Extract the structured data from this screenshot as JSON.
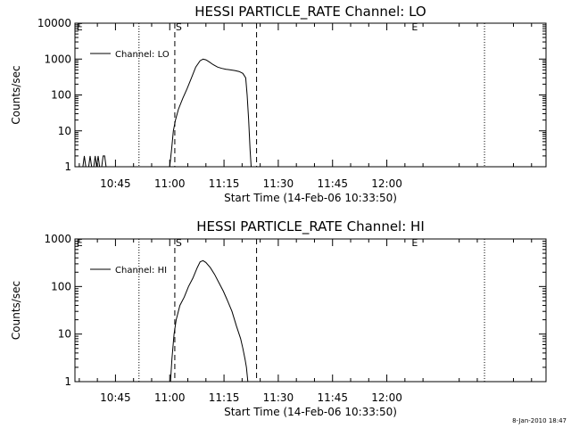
{
  "chart_data": [
    {
      "type": "line",
      "title": "HESSI PARTICLE_RATE Channel: LO",
      "xlabel": "Start Time (14-Feb-06 10:33:50)",
      "ylabel": "Counts/sec",
      "yscale": "log",
      "ylim": [
        1,
        10000
      ],
      "yticks": [
        1,
        10,
        100,
        1000,
        10000
      ],
      "yticklabels": [
        "1",
        "10",
        "100",
        "1000",
        "10000"
      ],
      "xlim_minutes": [
        633.8,
        764
      ],
      "xticks_minutes": [
        645,
        660,
        675,
        690,
        705,
        720
      ],
      "xticklabels": [
        "10:45",
        "11:00",
        "11:15",
        "11:30",
        "11:45",
        "12:00"
      ],
      "legend": "Channel: LO",
      "legend_position": "top-left",
      "dotted_lines_minutes": [
        651.5,
        747
      ],
      "dashed_lines_minutes": [
        661.4,
        684
      ],
      "markers": [
        {
          "label": "S",
          "x_minutes": 661.4
        },
        {
          "label": "E",
          "x_minutes": 726.6
        },
        {
          "label": "E",
          "x_minutes": 634
        }
      ],
      "series": [
        {
          "name": "Channel: LO",
          "points": [
            [
              636,
              1
            ],
            [
              636.4,
              2
            ],
            [
              636.8,
              1
            ],
            [
              637.6,
              1
            ],
            [
              638,
              2
            ],
            [
              638.4,
              1
            ],
            [
              639,
              1
            ],
            [
              639.4,
              2
            ],
            [
              639.8,
              1
            ],
            [
              640.2,
              2
            ],
            [
              640.6,
              1
            ],
            [
              641.2,
              1
            ],
            [
              641.6,
              2
            ],
            [
              642,
              2
            ],
            [
              642.4,
              1
            ],
            [
              660,
              1
            ],
            [
              660.5,
              3
            ],
            [
              661,
              10
            ],
            [
              661.6,
              20
            ],
            [
              662.4,
              40
            ],
            [
              663.6,
              80
            ],
            [
              664.8,
              150
            ],
            [
              666,
              300
            ],
            [
              667.2,
              600
            ],
            [
              668.4,
              900
            ],
            [
              669.2,
              1000
            ],
            [
              670,
              950
            ],
            [
              670.8,
              850
            ],
            [
              672,
              700
            ],
            [
              673.2,
              600
            ],
            [
              674.4,
              550
            ],
            [
              675.6,
              520
            ],
            [
              676.8,
              500
            ],
            [
              678,
              480
            ],
            [
              679.2,
              450
            ],
            [
              680.2,
              400
            ],
            [
              681,
              300
            ],
            [
              681.4,
              100
            ],
            [
              681.8,
              20
            ],
            [
              682.2,
              3
            ],
            [
              682.5,
              1
            ]
          ]
        }
      ]
    },
    {
      "type": "line",
      "title": "HESSI PARTICLE_RATE Channel: HI",
      "xlabel": "Start Time (14-Feb-06 10:33:50)",
      "ylabel": "Counts/sec",
      "yscale": "log",
      "ylim": [
        1,
        1000
      ],
      "yticks": [
        1,
        10,
        100,
        1000
      ],
      "yticklabels": [
        "1",
        "10",
        "100",
        "1000"
      ],
      "xlim_minutes": [
        633.8,
        764
      ],
      "xticks_minutes": [
        645,
        660,
        675,
        690,
        705,
        720
      ],
      "xticklabels": [
        "10:45",
        "11:00",
        "11:15",
        "11:30",
        "11:45",
        "12:00"
      ],
      "legend": "Channel: HI",
      "legend_position": "top-left",
      "dotted_lines_minutes": [
        651.5,
        747
      ],
      "dashed_lines_minutes": [
        661.4,
        684
      ],
      "markers": [
        {
          "label": "S",
          "x_minutes": 661.4
        },
        {
          "label": "E",
          "x_minutes": 726.6
        },
        {
          "label": "E",
          "x_minutes": 634
        }
      ],
      "series": [
        {
          "name": "Channel: HI",
          "points": [
            [
              660.2,
              1
            ],
            [
              660.6,
              3
            ],
            [
              661.2,
              10
            ],
            [
              661.8,
              20
            ],
            [
              662.8,
              40
            ],
            [
              664,
              60
            ],
            [
              665.2,
              100
            ],
            [
              666.4,
              150
            ],
            [
              667.6,
              250
            ],
            [
              668.4,
              330
            ],
            [
              669.2,
              350
            ],
            [
              670,
              320
            ],
            [
              671.2,
              250
            ],
            [
              672.4,
              180
            ],
            [
              673.6,
              120
            ],
            [
              674.8,
              80
            ],
            [
              676,
              50
            ],
            [
              677.2,
              30
            ],
            [
              678.4,
              15
            ],
            [
              679.6,
              8
            ],
            [
              680.2,
              5
            ],
            [
              680.8,
              3
            ],
            [
              681.2,
              2
            ],
            [
              681.6,
              1
            ]
          ]
        }
      ]
    }
  ],
  "footer": {
    "timestamp": "8-Jan-2010 18:47"
  }
}
